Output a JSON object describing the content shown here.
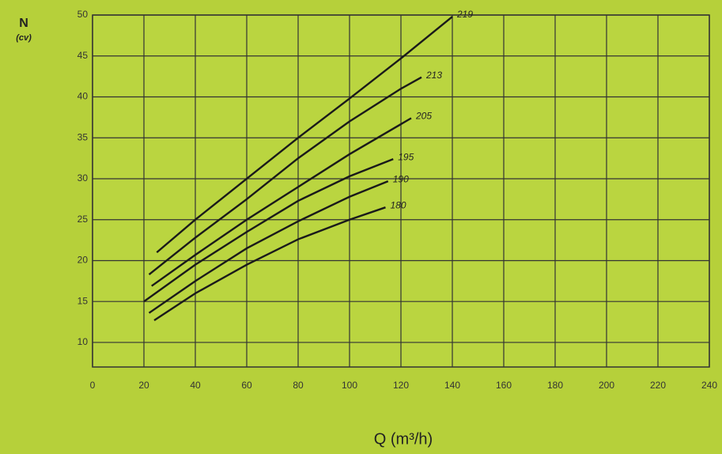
{
  "chart_data": {
    "type": "line",
    "y_label": "N",
    "y_unit": "(cv)",
    "x_label": "Q (m³/h)",
    "xlim": [
      0,
      240
    ],
    "xticks": [
      0,
      20,
      40,
      60,
      80,
      100,
      120,
      140,
      160,
      180,
      200,
      220,
      240
    ],
    "ylim": [
      7,
      50
    ],
    "yticks": [
      10,
      15,
      20,
      25,
      30,
      35,
      40,
      45,
      50
    ],
    "grid": true,
    "series": [
      {
        "name": "219",
        "color": "#1a1a1a",
        "x": [
          25,
          40,
          60,
          80,
          100,
          120,
          140
        ],
        "values": [
          21,
          25,
          30,
          35,
          39.8,
          44.7,
          49.8
        ]
      },
      {
        "name": "213",
        "color": "#1a1a1a",
        "x": [
          22,
          40,
          60,
          80,
          100,
          120,
          128
        ],
        "values": [
          18.3,
          22.8,
          27.5,
          32.5,
          37,
          41,
          42.4
        ]
      },
      {
        "name": "205",
        "color": "#1a1a1a",
        "x": [
          23,
          40,
          60,
          80,
          100,
          124
        ],
        "values": [
          16.9,
          20.7,
          25,
          29,
          33,
          37.4
        ]
      },
      {
        "name": "195",
        "color": "#1a1a1a",
        "x": [
          20,
          40,
          60,
          80,
          100,
          117
        ],
        "values": [
          15,
          19.5,
          23.5,
          27.3,
          30.3,
          32.4
        ]
      },
      {
        "name": "190",
        "color": "#1a1a1a",
        "x": [
          22,
          40,
          60,
          80,
          100,
          115
        ],
        "values": [
          13.6,
          17.5,
          21.5,
          24.8,
          27.8,
          29.7
        ]
      },
      {
        "name": "180",
        "color": "#1a1a1a",
        "x": [
          24,
          40,
          60,
          80,
          100,
          114
        ],
        "values": [
          12.7,
          16,
          19.5,
          22.6,
          25,
          26.5
        ]
      }
    ]
  }
}
